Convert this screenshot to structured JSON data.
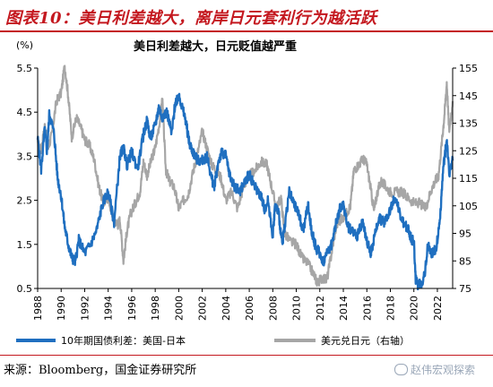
{
  "title": "图表10：美日利差越大，离岸日元套利行为越活跃",
  "source": "来源：Bloomberg，国金证券研究所",
  "watermark": "赵伟宏观探索",
  "chart_data": {
    "type": "line",
    "subtitle": "美日利差越大，日元贬值越严重",
    "left_axis_unit": "(%)",
    "ylim_left": [
      0.5,
      5.5
    ],
    "yticks_left": [
      0.5,
      1.5,
      2.5,
      3.5,
      4.5,
      5.5
    ],
    "ylim_right": [
      75,
      155
    ],
    "yticks_right": [
      75,
      85,
      95,
      105,
      115,
      125,
      135,
      145,
      155
    ],
    "xlim": [
      1988,
      2023.3
    ],
    "xticks": [
      1988,
      1990,
      1992,
      1994,
      1996,
      1998,
      2000,
      2002,
      2004,
      2006,
      2008,
      2010,
      2012,
      2014,
      2016,
      2018,
      2020,
      2022
    ],
    "grid": false,
    "legend_position": "bottom",
    "series": [
      {
        "name": "10年期国债利差：美国-日本",
        "axis": "left",
        "color": "#1f6fc0",
        "x": [
          1988.0,
          1988.3,
          1988.6,
          1988.8,
          1989.0,
          1989.4,
          1989.7,
          1990.0,
          1990.3,
          1990.6,
          1990.9,
          1991.2,
          1991.5,
          1992.0,
          1992.5,
          1993.0,
          1993.5,
          1994.0,
          1994.5,
          1995.0,
          1995.3,
          1995.6,
          1996.0,
          1996.5,
          1997.0,
          1997.3,
          1997.6,
          1998.0,
          1998.3,
          1998.6,
          1999.0,
          1999.4,
          1999.7,
          2000.0,
          2000.3,
          2000.6,
          2000.9,
          2001.2,
          2001.6,
          2002.0,
          2002.4,
          2002.8,
          2003.0,
          2003.4,
          2003.7,
          2004.0,
          2004.4,
          2004.8,
          2005.2,
          2005.6,
          2006.0,
          2006.5,
          2007.0,
          2007.3,
          2007.6,
          2008.0,
          2008.2,
          2008.5,
          2008.8,
          2009.0,
          2009.4,
          2009.8,
          2010.2,
          2010.6,
          2011.0,
          2011.3,
          2011.7,
          2012.0,
          2012.3,
          2012.6,
          2013.0,
          2013.4,
          2013.7,
          2014.0,
          2014.4,
          2014.8,
          2015.2,
          2015.6,
          2016.0,
          2016.3,
          2016.6,
          2017.0,
          2017.5,
          2018.0,
          2018.4,
          2018.8,
          2019.2,
          2019.5,
          2019.8,
          2020.0,
          2020.15,
          2020.3,
          2020.6,
          2020.9,
          2021.2,
          2021.5,
          2021.9,
          2022.2,
          2022.5,
          2022.8,
          2023.0,
          2023.3
        ],
        "values": [
          3.9,
          3.2,
          4.1,
          3.6,
          4.5,
          4.0,
          3.0,
          2.6,
          1.9,
          1.5,
          1.2,
          1.1,
          1.6,
          1.3,
          1.5,
          1.8,
          2.4,
          2.7,
          2.0,
          3.5,
          3.7,
          3.3,
          3.6,
          3.2,
          4.0,
          4.3,
          3.9,
          4.2,
          4.6,
          4.4,
          4.5,
          4.0,
          4.7,
          4.9,
          4.6,
          4.3,
          3.8,
          3.6,
          3.4,
          3.4,
          3.5,
          3.0,
          2.8,
          3.4,
          3.6,
          3.5,
          3.0,
          2.8,
          2.7,
          2.9,
          3.1,
          2.8,
          2.6,
          2.3,
          2.5,
          1.7,
          2.4,
          2.2,
          1.5,
          1.9,
          2.7,
          2.4,
          2.2,
          1.8,
          2.4,
          1.8,
          1.4,
          1.3,
          1.1,
          1.3,
          1.5,
          2.0,
          2.3,
          2.4,
          1.9,
          1.8,
          1.7,
          2.0,
          1.6,
          1.3,
          1.6,
          2.1,
          2.0,
          2.3,
          2.6,
          2.2,
          1.9,
          1.9,
          1.6,
          1.6,
          0.7,
          0.6,
          0.6,
          0.8,
          1.5,
          1.3,
          1.4,
          2.0,
          3.2,
          3.9,
          3.1,
          3.4
        ]
      },
      {
        "name": "美元兑日元（右轴）",
        "axis": "right",
        "color": "#a6a6a6",
        "x": [
          1988.0,
          1988.3,
          1988.6,
          1988.9,
          1989.2,
          1989.6,
          1990.0,
          1990.3,
          1990.6,
          1990.9,
          1991.3,
          1991.7,
          1992.0,
          1992.4,
          1992.8,
          1993.2,
          1993.6,
          1994.0,
          1994.4,
          1994.8,
          1995.0,
          1995.3,
          1995.6,
          1995.9,
          1996.3,
          1996.7,
          1997.0,
          1997.3,
          1997.7,
          1998.0,
          1998.4,
          1998.6,
          1998.9,
          1999.2,
          1999.6,
          2000.0,
          2000.4,
          2000.8,
          2001.2,
          2001.6,
          2002.0,
          2002.4,
          2002.8,
          2003.2,
          2003.6,
          2004.0,
          2004.5,
          2005.0,
          2005.5,
          2006.0,
          2006.5,
          2007.0,
          2007.5,
          2007.9,
          2008.3,
          2008.7,
          2009.0,
          2009.5,
          2010.0,
          2010.5,
          2011.0,
          2011.5,
          2011.8,
          2012.2,
          2012.6,
          2013.0,
          2013.4,
          2013.8,
          2014.2,
          2014.6,
          2014.9,
          2015.3,
          2015.7,
          2016.0,
          2016.3,
          2016.6,
          2016.9,
          2017.2,
          2017.6,
          2018.0,
          2018.5,
          2019.0,
          2019.5,
          2020.0,
          2020.5,
          2021.0,
          2021.4,
          2021.8,
          2022.1,
          2022.4,
          2022.6,
          2022.8,
          2023.0,
          2023.3
        ],
        "values": [
          128,
          125,
          134,
          126,
          131,
          143,
          146,
          156,
          145,
          130,
          137,
          133,
          129,
          127,
          122,
          112,
          106,
          108,
          101,
          98,
          100,
          85,
          96,
          102,
          106,
          110,
          121,
          116,
          122,
          126,
          136,
          144,
          118,
          114,
          112,
          104,
          107,
          109,
          117,
          124,
          132,
          126,
          120,
          118,
          115,
          107,
          110,
          104,
          112,
          116,
          118,
          121,
          120,
          112,
          104,
          108,
          95,
          92,
          91,
          86,
          84,
          80,
          77,
          79,
          78,
          88,
          98,
          100,
          102,
          105,
          118,
          120,
          122,
          120,
          112,
          103,
          110,
          114,
          112,
          110,
          110,
          110,
          108,
          106,
          106,
          104,
          110,
          114,
          116,
          129,
          138,
          150,
          132,
          143
        ]
      }
    ]
  }
}
